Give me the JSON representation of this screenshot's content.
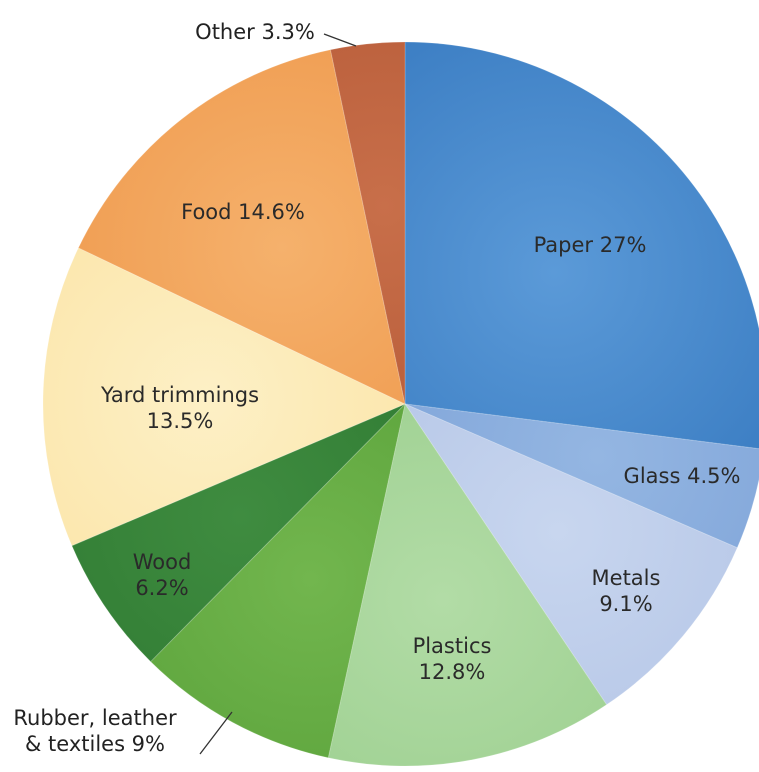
{
  "chart_data": {
    "type": "pie",
    "slices": [
      {
        "label": "Paper",
        "value": 27,
        "text": [
          "Paper 27%"
        ],
        "color": "#3d7fc4",
        "color_light": "#5b9ad8"
      },
      {
        "label": "Glass",
        "value": 4.5,
        "text": [
          "Glass 4.5%"
        ],
        "color": "#7ea3d8",
        "color_light": "#94b6e2"
      },
      {
        "label": "Metals",
        "value": 9.1,
        "text": [
          "Metals",
          "9.1%"
        ],
        "color": "#b4c5e6",
        "color_light": "#c8d6ef"
      },
      {
        "label": "Plastics",
        "value": 12.8,
        "text": [
          "Plastics",
          "12.8%"
        ],
        "color": "#9ccf8f",
        "color_light": "#b2dca6"
      },
      {
        "label": "Rubber, leather & textiles",
        "value": 9,
        "text": [
          "Rubber, leather",
          "& textiles 9%"
        ],
        "color": "#5aa23a",
        "color_light": "#72b64e"
      },
      {
        "label": "Wood",
        "value": 6.2,
        "text": [
          "Wood",
          "6.2%"
        ],
        "color": "#2f7a32",
        "color_light": "#3f8c40"
      },
      {
        "label": "Yard trimmings",
        "value": 13.5,
        "text": [
          "Yard trimmings",
          "13.5%"
        ],
        "color": "#fbe4a6",
        "color_light": "#fdf0c6"
      },
      {
        "label": "Food",
        "value": 14.6,
        "text": [
          "Food 14.6%"
        ],
        "color": "#ef9a4e",
        "color_light": "#f5b16c"
      },
      {
        "label": "Other",
        "value": 3.3,
        "text": [
          "Other 3.3%"
        ],
        "color": "#b65a37",
        "color_light": "#c86f4a"
      }
    ],
    "start_angle": "12 o'clock",
    "direction": "clockwise",
    "legend": "none"
  }
}
